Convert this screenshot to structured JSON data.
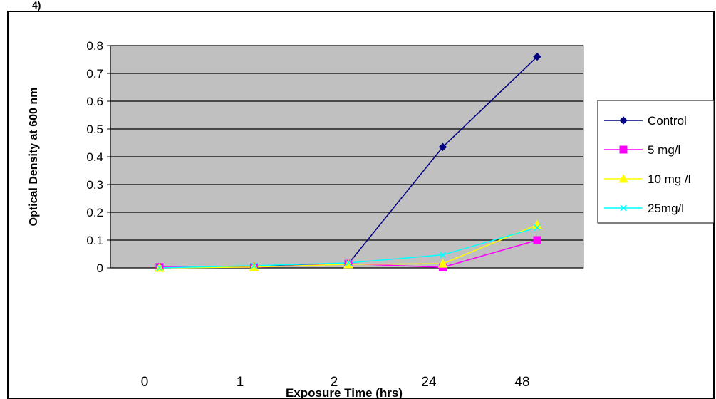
{
  "corner_mark": "4)",
  "chart_data": {
    "type": "line",
    "title": "",
    "xlabel": "Exposure Time (hrs)",
    "ylabel": "Optical Density at 600 nm",
    "categories": [
      "0",
      "1",
      "2",
      "24",
      "48"
    ],
    "ylim": [
      0,
      0.8
    ],
    "yticks": [
      "0",
      "0.1",
      "0.2",
      "0.3",
      "0.4",
      "0.5",
      "0.6",
      "0.7",
      "0.8"
    ],
    "grid": true,
    "legend": "right",
    "plot_background": "#c0c0c0",
    "series": [
      {
        "name": "Control",
        "color": "#000080",
        "marker": "diamond",
        "values": [
          0.0,
          0.005,
          0.015,
          0.435,
          0.76
        ]
      },
      {
        "name": "5 mg/l",
        "color": "#ff00ff",
        "marker": "square",
        "values": [
          0.003,
          0.002,
          0.015,
          0.002,
          0.1
        ]
      },
      {
        "name": "10 mg /l",
        "color": "#ffff00",
        "marker": "triangle",
        "values": [
          0.0,
          0.003,
          0.013,
          0.015,
          0.155
        ]
      },
      {
        "name": "25mg/l",
        "color": "#00ffff",
        "marker": "x",
        "values": [
          0.0,
          0.008,
          0.018,
          0.047,
          0.145
        ]
      }
    ]
  }
}
